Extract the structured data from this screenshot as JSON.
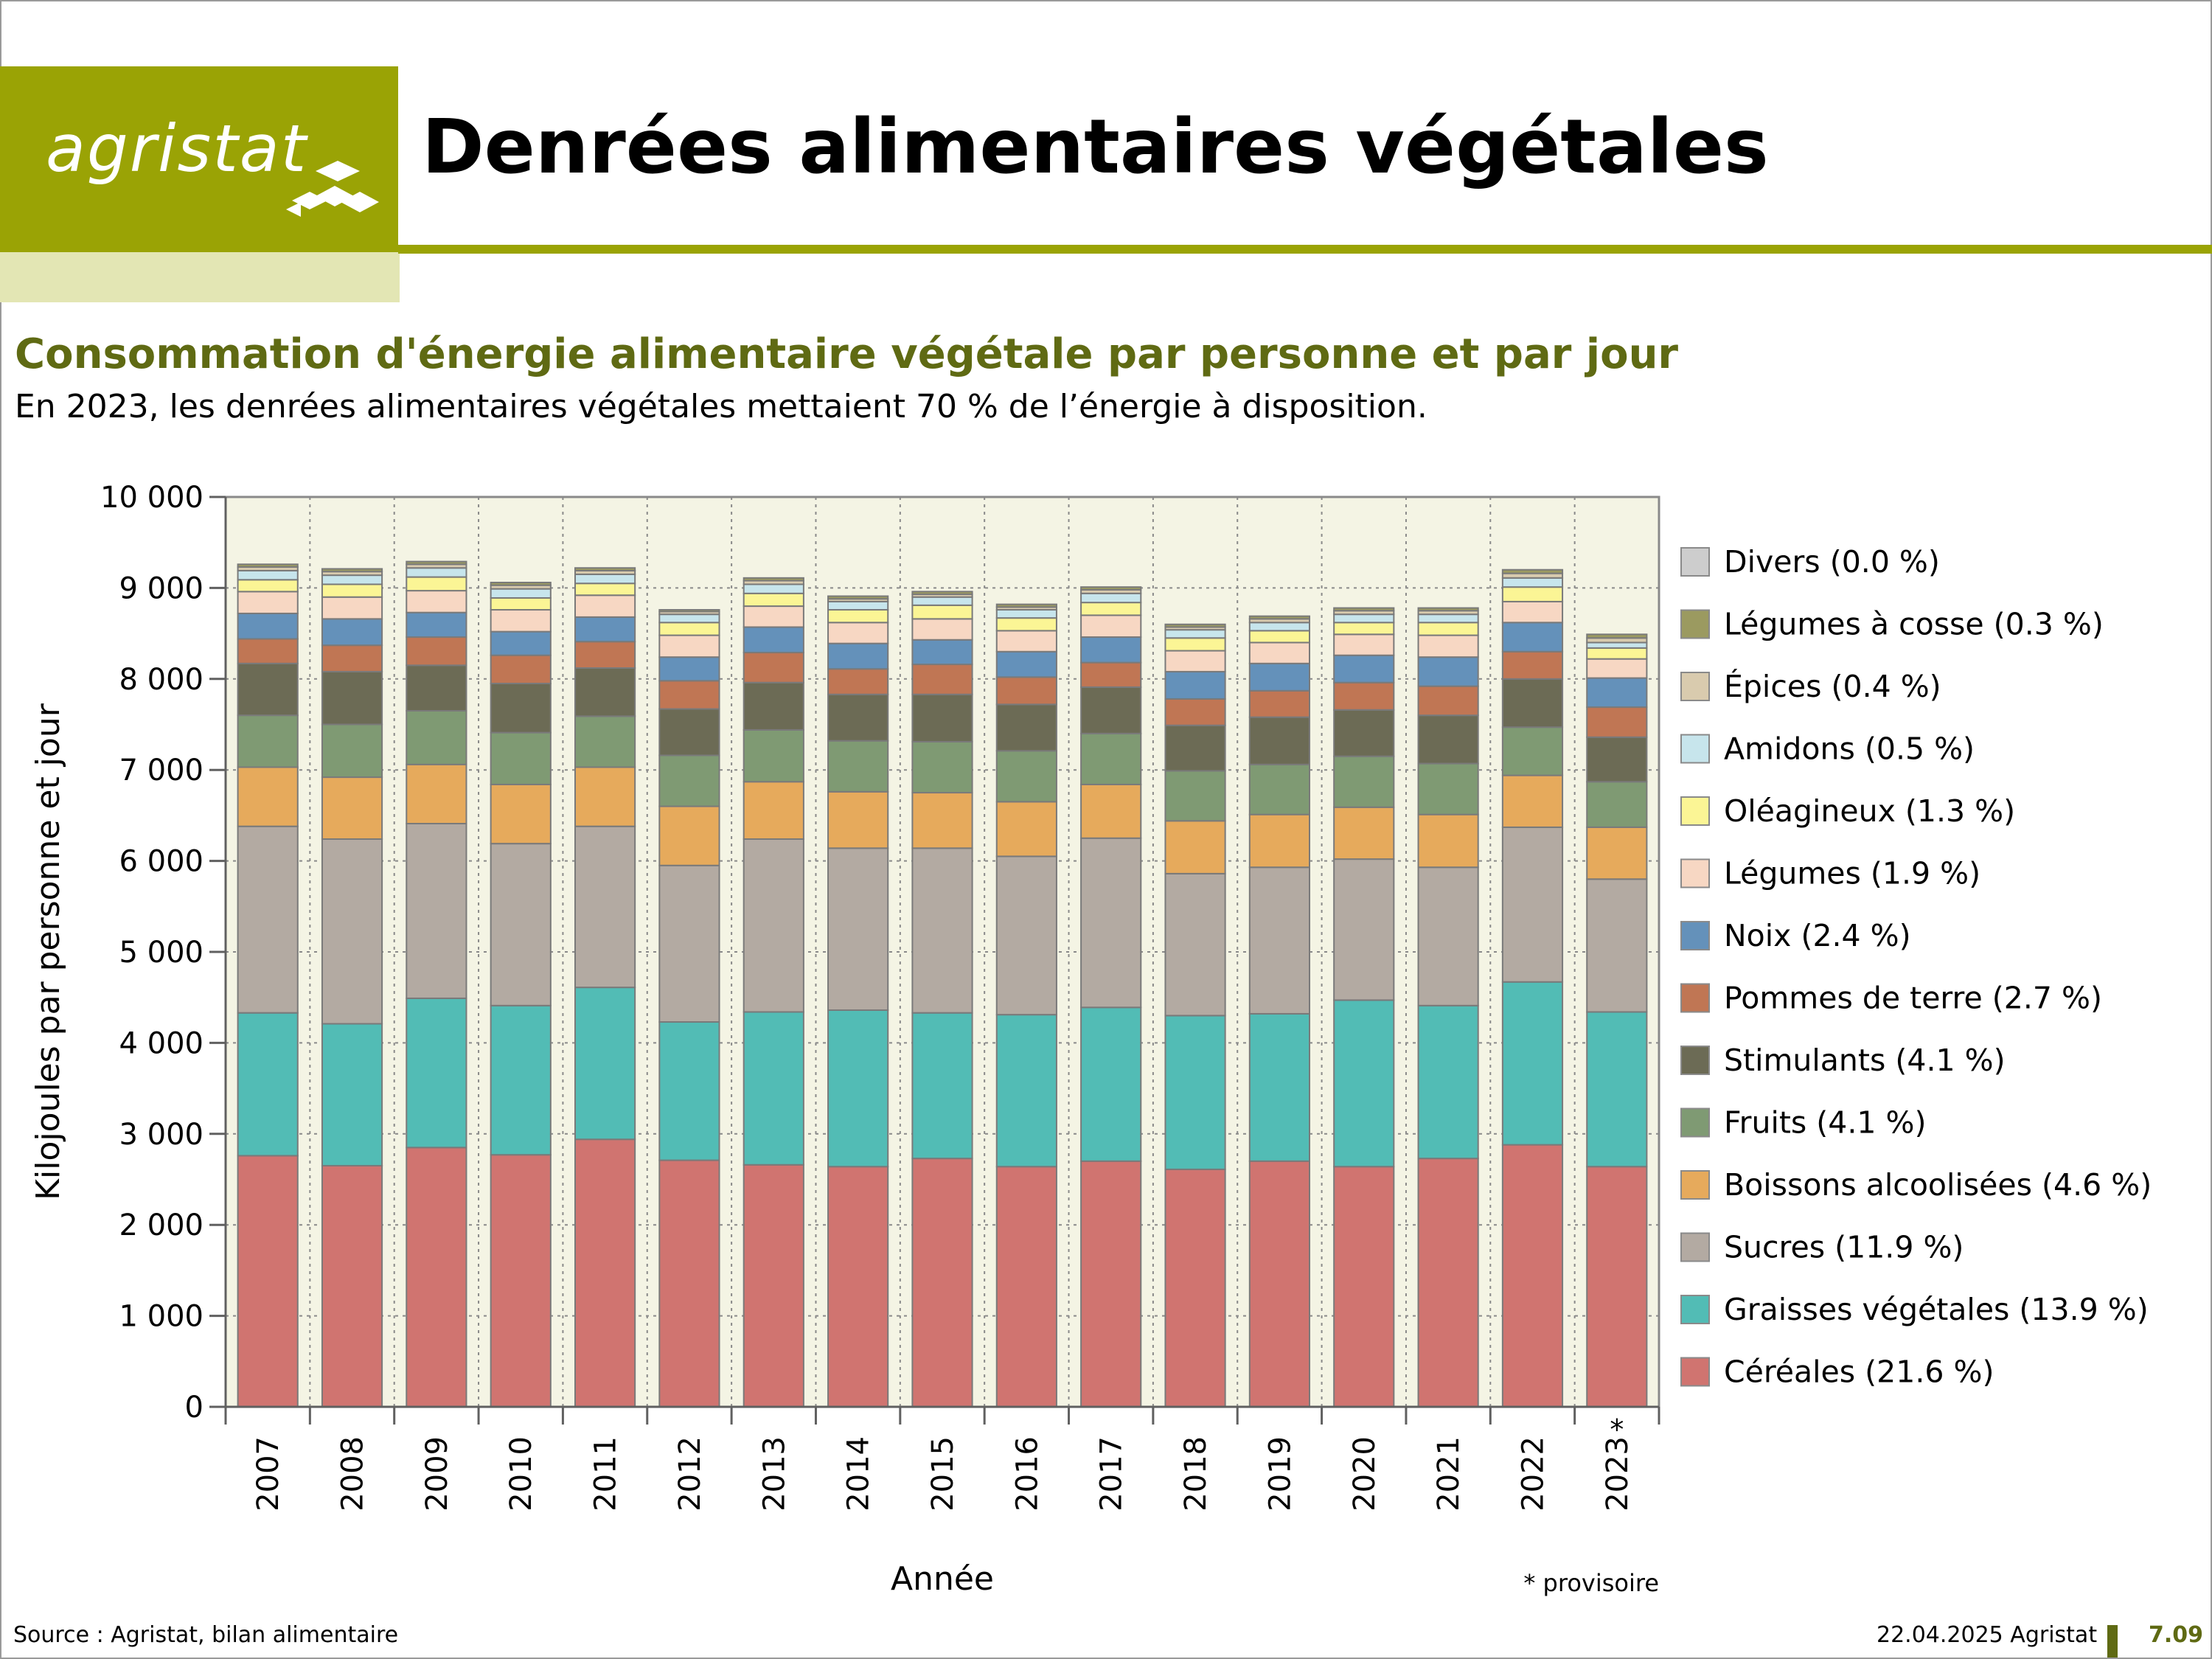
{
  "header": {
    "logo_text": "agristat",
    "title": "Denrées alimentaires végétales",
    "subtitle": "Consommation d'énergie alimentaire végétale par personne et par jour",
    "description": "En 2023, les denrées alimentaires végétales mettaient 70 % de l’énergie à disposition."
  },
  "footer": {
    "source": "Source : Agristat, bilan alimentaire",
    "date": "22.04.2025 Agristat",
    "code": "7.09"
  },
  "colors": {
    "brand_green": "#9aa305",
    "brand_green_light": "#e3e6b4",
    "subtitle_green": "#5f6a13",
    "plot_background": "#f4f4e4"
  },
  "chart_data": {
    "type": "bar",
    "stacked": true,
    "xlabel": "Année",
    "ylabel": "Kilojoules par personne et jour",
    "ylim": [
      0,
      10000
    ],
    "yticks": [
      0,
      1000,
      2000,
      3000,
      4000,
      5000,
      6000,
      7000,
      8000,
      9000,
      10000
    ],
    "ytick_labels": [
      "0",
      "1 000",
      "2 000",
      "3 000",
      "4 000",
      "5 000",
      "6 000",
      "7 000",
      "8 000",
      "9 000",
      "10 000"
    ],
    "grid": true,
    "legend_position": "right",
    "note": "* provisoire",
    "categories": [
      "2007",
      "2008",
      "2009",
      "2010",
      "2011",
      "2012",
      "2013",
      "2014",
      "2015",
      "2016",
      "2017",
      "2018",
      "2019",
      "2020",
      "2021",
      "2022",
      "2023"
    ],
    "category_marks": [
      "",
      "",
      "",
      "",
      "",
      "",
      "",
      "",
      "",
      "",
      "",
      "",
      "",
      "",
      "",
      "",
      "*"
    ],
    "series": [
      {
        "name": "Céréales (21.6 %)",
        "color": "#d07470",
        "values": [
          2760,
          2650,
          2850,
          2770,
          2940,
          2710,
          2660,
          2640,
          2730,
          2640,
          2700,
          2610,
          2700,
          2640,
          2730,
          2880,
          2640
        ]
      },
      {
        "name": "Graisses végétales (13.9 %)",
        "color": "#52bcb5",
        "values": [
          1570,
          1560,
          1640,
          1640,
          1670,
          1520,
          1680,
          1720,
          1600,
          1670,
          1690,
          1690,
          1620,
          1830,
          1680,
          1790,
          1700
        ]
      },
      {
        "name": "Sucres (11.9 %)",
        "color": "#b3aaa2",
        "values": [
          2050,
          2030,
          1920,
          1780,
          1770,
          1720,
          1900,
          1780,
          1810,
          1740,
          1860,
          1560,
          1610,
          1550,
          1520,
          1700,
          1460
        ]
      },
      {
        "name": "Boissons alcoolisées (4.6 %)",
        "color": "#e6aa5c",
        "values": [
          650,
          680,
          650,
          650,
          650,
          650,
          630,
          620,
          610,
          600,
          590,
          580,
          580,
          570,
          580,
          570,
          570
        ]
      },
      {
        "name": "Fruits (4.1 %)",
        "color": "#7f9a73",
        "values": [
          570,
          580,
          590,
          570,
          560,
          560,
          570,
          560,
          560,
          560,
          560,
          550,
          550,
          560,
          560,
          530,
          500
        ]
      },
      {
        "name": "Stimulants (4.1 %)",
        "color": "#6c6b55",
        "values": [
          570,
          580,
          500,
          540,
          530,
          510,
          520,
          510,
          520,
          510,
          510,
          500,
          520,
          510,
          530,
          530,
          490
        ]
      },
      {
        "name": "Pommes de terre (2.7 %)",
        "color": "#c07654",
        "values": [
          270,
          290,
          310,
          310,
          290,
          310,
          330,
          280,
          330,
          300,
          270,
          290,
          290,
          300,
          320,
          300,
          330
        ]
      },
      {
        "name": "Noix (2.4 %)",
        "color": "#6491ba",
        "values": [
          280,
          290,
          270,
          260,
          270,
          260,
          280,
          280,
          270,
          280,
          280,
          300,
          300,
          300,
          320,
          320,
          320
        ]
      },
      {
        "name": "Légumes (1.9 %)",
        "color": "#f7d7c3",
        "values": [
          240,
          240,
          240,
          240,
          240,
          240,
          230,
          230,
          230,
          230,
          240,
          230,
          230,
          230,
          240,
          230,
          210
        ]
      },
      {
        "name": "Oléagineux (1.3 %)",
        "color": "#fbf595",
        "values": [
          130,
          140,
          150,
          130,
          130,
          140,
          140,
          140,
          150,
          140,
          140,
          140,
          130,
          130,
          140,
          160,
          120
        ]
      },
      {
        "name": "Amidons (0.5 %)",
        "color": "#c7e5ec",
        "values": [
          100,
          100,
          100,
          100,
          100,
          90,
          100,
          90,
          90,
          90,
          100,
          90,
          90,
          90,
          90,
          100,
          60
        ]
      },
      {
        "name": "Épices (0.4 %)",
        "color": "#d9cbae",
        "values": [
          40,
          40,
          40,
          40,
          40,
          30,
          40,
          30,
          30,
          30,
          40,
          30,
          40,
          40,
          40,
          50,
          50
        ]
      },
      {
        "name": "Légumes à cosse (0.3 %)",
        "color": "#9b9a60",
        "values": [
          30,
          30,
          30,
          30,
          30,
          20,
          30,
          30,
          30,
          30,
          30,
          30,
          30,
          30,
          30,
          40,
          40
        ]
      },
      {
        "name": "Divers (0.0 %)",
        "color": "#cdcdcd",
        "values": [
          0,
          0,
          0,
          0,
          0,
          0,
          0,
          0,
          0,
          0,
          0,
          0,
          0,
          0,
          0,
          0,
          0
        ]
      }
    ]
  }
}
